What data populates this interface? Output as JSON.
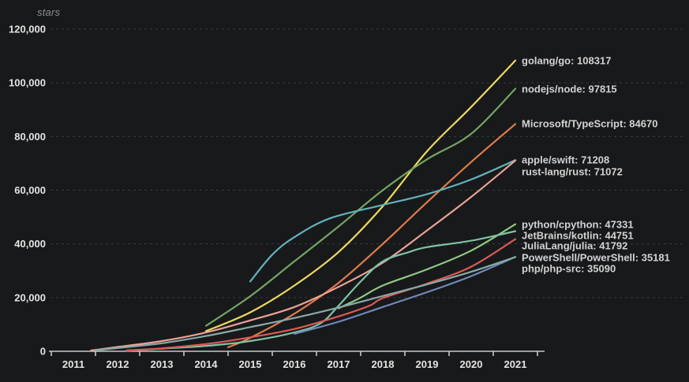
{
  "header": {
    "title": "stars"
  },
  "chart_data": {
    "type": "line",
    "title": "",
    "ylabel": "stars",
    "xlabel": "",
    "xlim": [
      2011,
      2021
    ],
    "ylim": [
      0,
      120000
    ],
    "grid": "horizontal-dashed",
    "legend_position": "right-of-line-endpoints",
    "x_tick_labels": [
      "2011",
      "2012",
      "2013",
      "2014",
      "2015",
      "2016",
      "2017",
      "2018",
      "2019",
      "2020",
      "2021"
    ],
    "y_tick_labels": [
      "0",
      "20,000",
      "40,000",
      "60,000",
      "80,000",
      "100,000",
      "120,000"
    ],
    "y_tick_values": [
      0,
      20000,
      40000,
      60000,
      80000,
      100000,
      120000
    ],
    "colors": {
      "grid": "#3a3d40",
      "axis": "#c8c8c8",
      "background": "#18191b",
      "tick_text": "#e4e4e4",
      "label_text": "#d2d2d2"
    },
    "series": [
      {
        "name": "golang/go",
        "final_value": 108317,
        "color": "#ecd95e",
        "label_y": 77,
        "points": [
          [
            2014,
            7500
          ],
          [
            2015,
            14500
          ],
          [
            2016,
            24500
          ],
          [
            2017,
            37000
          ],
          [
            2018,
            54000
          ],
          [
            2019,
            74500
          ],
          [
            2020,
            91000
          ],
          [
            2021,
            108317
          ]
        ]
      },
      {
        "name": "nodejs/node",
        "final_value": 97815,
        "color": "#74a564",
        "label_y": 113,
        "points": [
          [
            2014,
            9500
          ],
          [
            2015,
            20500
          ],
          [
            2016,
            33500
          ],
          [
            2017,
            46500
          ],
          [
            2018,
            60000
          ],
          [
            2019,
            71500
          ],
          [
            2020,
            81000
          ],
          [
            2021,
            97815
          ]
        ]
      },
      {
        "name": "Microsoft/TypeScript",
        "final_value": 84670,
        "color": "#e07b4a",
        "label_y": 157,
        "points": [
          [
            2014.5,
            1500
          ],
          [
            2015,
            5000
          ],
          [
            2016,
            14000
          ],
          [
            2017,
            25500
          ],
          [
            2018,
            40000
          ],
          [
            2019,
            55500
          ],
          [
            2020,
            70500
          ],
          [
            2021,
            84670
          ]
        ]
      },
      {
        "name": "apple/swift",
        "final_value": 71208,
        "color": "#62b2ba",
        "label_y": 203,
        "points": [
          [
            2015,
            26000
          ],
          [
            2015.5,
            36000
          ],
          [
            2016,
            42500
          ],
          [
            2016.8,
            49500
          ],
          [
            2018,
            54500
          ],
          [
            2019,
            58500
          ],
          [
            2020,
            64000
          ],
          [
            2021,
            71208
          ]
        ]
      },
      {
        "name": "rust-lang/rust",
        "final_value": 71072,
        "color": "#eaa397",
        "label_y": 218,
        "points": [
          [
            2011.4,
            300
          ],
          [
            2012,
            1600
          ],
          [
            2013,
            3800
          ],
          [
            2014,
            7000
          ],
          [
            2015,
            11500
          ],
          [
            2016,
            16500
          ],
          [
            2017,
            24000
          ],
          [
            2018,
            33000
          ],
          [
            2019,
            45000
          ],
          [
            2020,
            57500
          ],
          [
            2021,
            71072
          ]
        ]
      },
      {
        "name": "python/cpython",
        "final_value": 47331,
        "color": "#8fca82",
        "label_y": 285,
        "points": [
          [
            2017,
            16000
          ],
          [
            2017.5,
            20000
          ],
          [
            2018,
            24500
          ],
          [
            2019,
            30500
          ],
          [
            2020,
            37500
          ],
          [
            2021,
            47331
          ]
        ]
      },
      {
        "name": "JetBrains/kotlin",
        "final_value": 44751,
        "color": "#7fc2a4",
        "label_y": 299,
        "points": [
          [
            2012.2,
            300
          ],
          [
            2013,
            1000
          ],
          [
            2014,
            2000
          ],
          [
            2015,
            3800
          ],
          [
            2016,
            7000
          ],
          [
            2016.6,
            10500
          ],
          [
            2017,
            17000
          ],
          [
            2017.5,
            26000
          ],
          [
            2018,
            33500
          ],
          [
            2018.6,
            37000
          ],
          [
            2019,
            38800
          ],
          [
            2020,
            41200
          ],
          [
            2021,
            44751
          ]
        ]
      },
      {
        "name": "JuliaLang/julia",
        "final_value": 41792,
        "color": "#dc5a55",
        "label_y": 312,
        "points": [
          [
            2012.2,
            200
          ],
          [
            2013,
            1100
          ],
          [
            2014,
            2700
          ],
          [
            2015,
            5200
          ],
          [
            2016,
            8300
          ],
          [
            2017,
            13000
          ],
          [
            2017.7,
            17000
          ],
          [
            2018,
            19800
          ],
          [
            2019,
            25200
          ],
          [
            2020,
            31500
          ],
          [
            2021,
            41792
          ]
        ]
      },
      {
        "name": "PowerShell/PowerShell",
        "final_value": 35181,
        "color": "#7089bb",
        "label_y": 327,
        "points": [
          [
            2016,
            6500
          ],
          [
            2017,
            11000
          ],
          [
            2018,
            16500
          ],
          [
            2019,
            22000
          ],
          [
            2020,
            28000
          ],
          [
            2021,
            35181
          ]
        ]
      },
      {
        "name": "php/php-src",
        "final_value": 35090,
        "color": "#87aaa8",
        "label_y": 341,
        "points": [
          [
            2011.5,
            400
          ],
          [
            2012,
            1200
          ],
          [
            2013,
            3000
          ],
          [
            2014,
            5700
          ],
          [
            2015,
            9000
          ],
          [
            2016,
            12400
          ],
          [
            2017,
            16300
          ],
          [
            2018,
            20600
          ],
          [
            2019,
            24900
          ],
          [
            2020,
            29600
          ],
          [
            2021,
            35090
          ]
        ]
      }
    ]
  }
}
